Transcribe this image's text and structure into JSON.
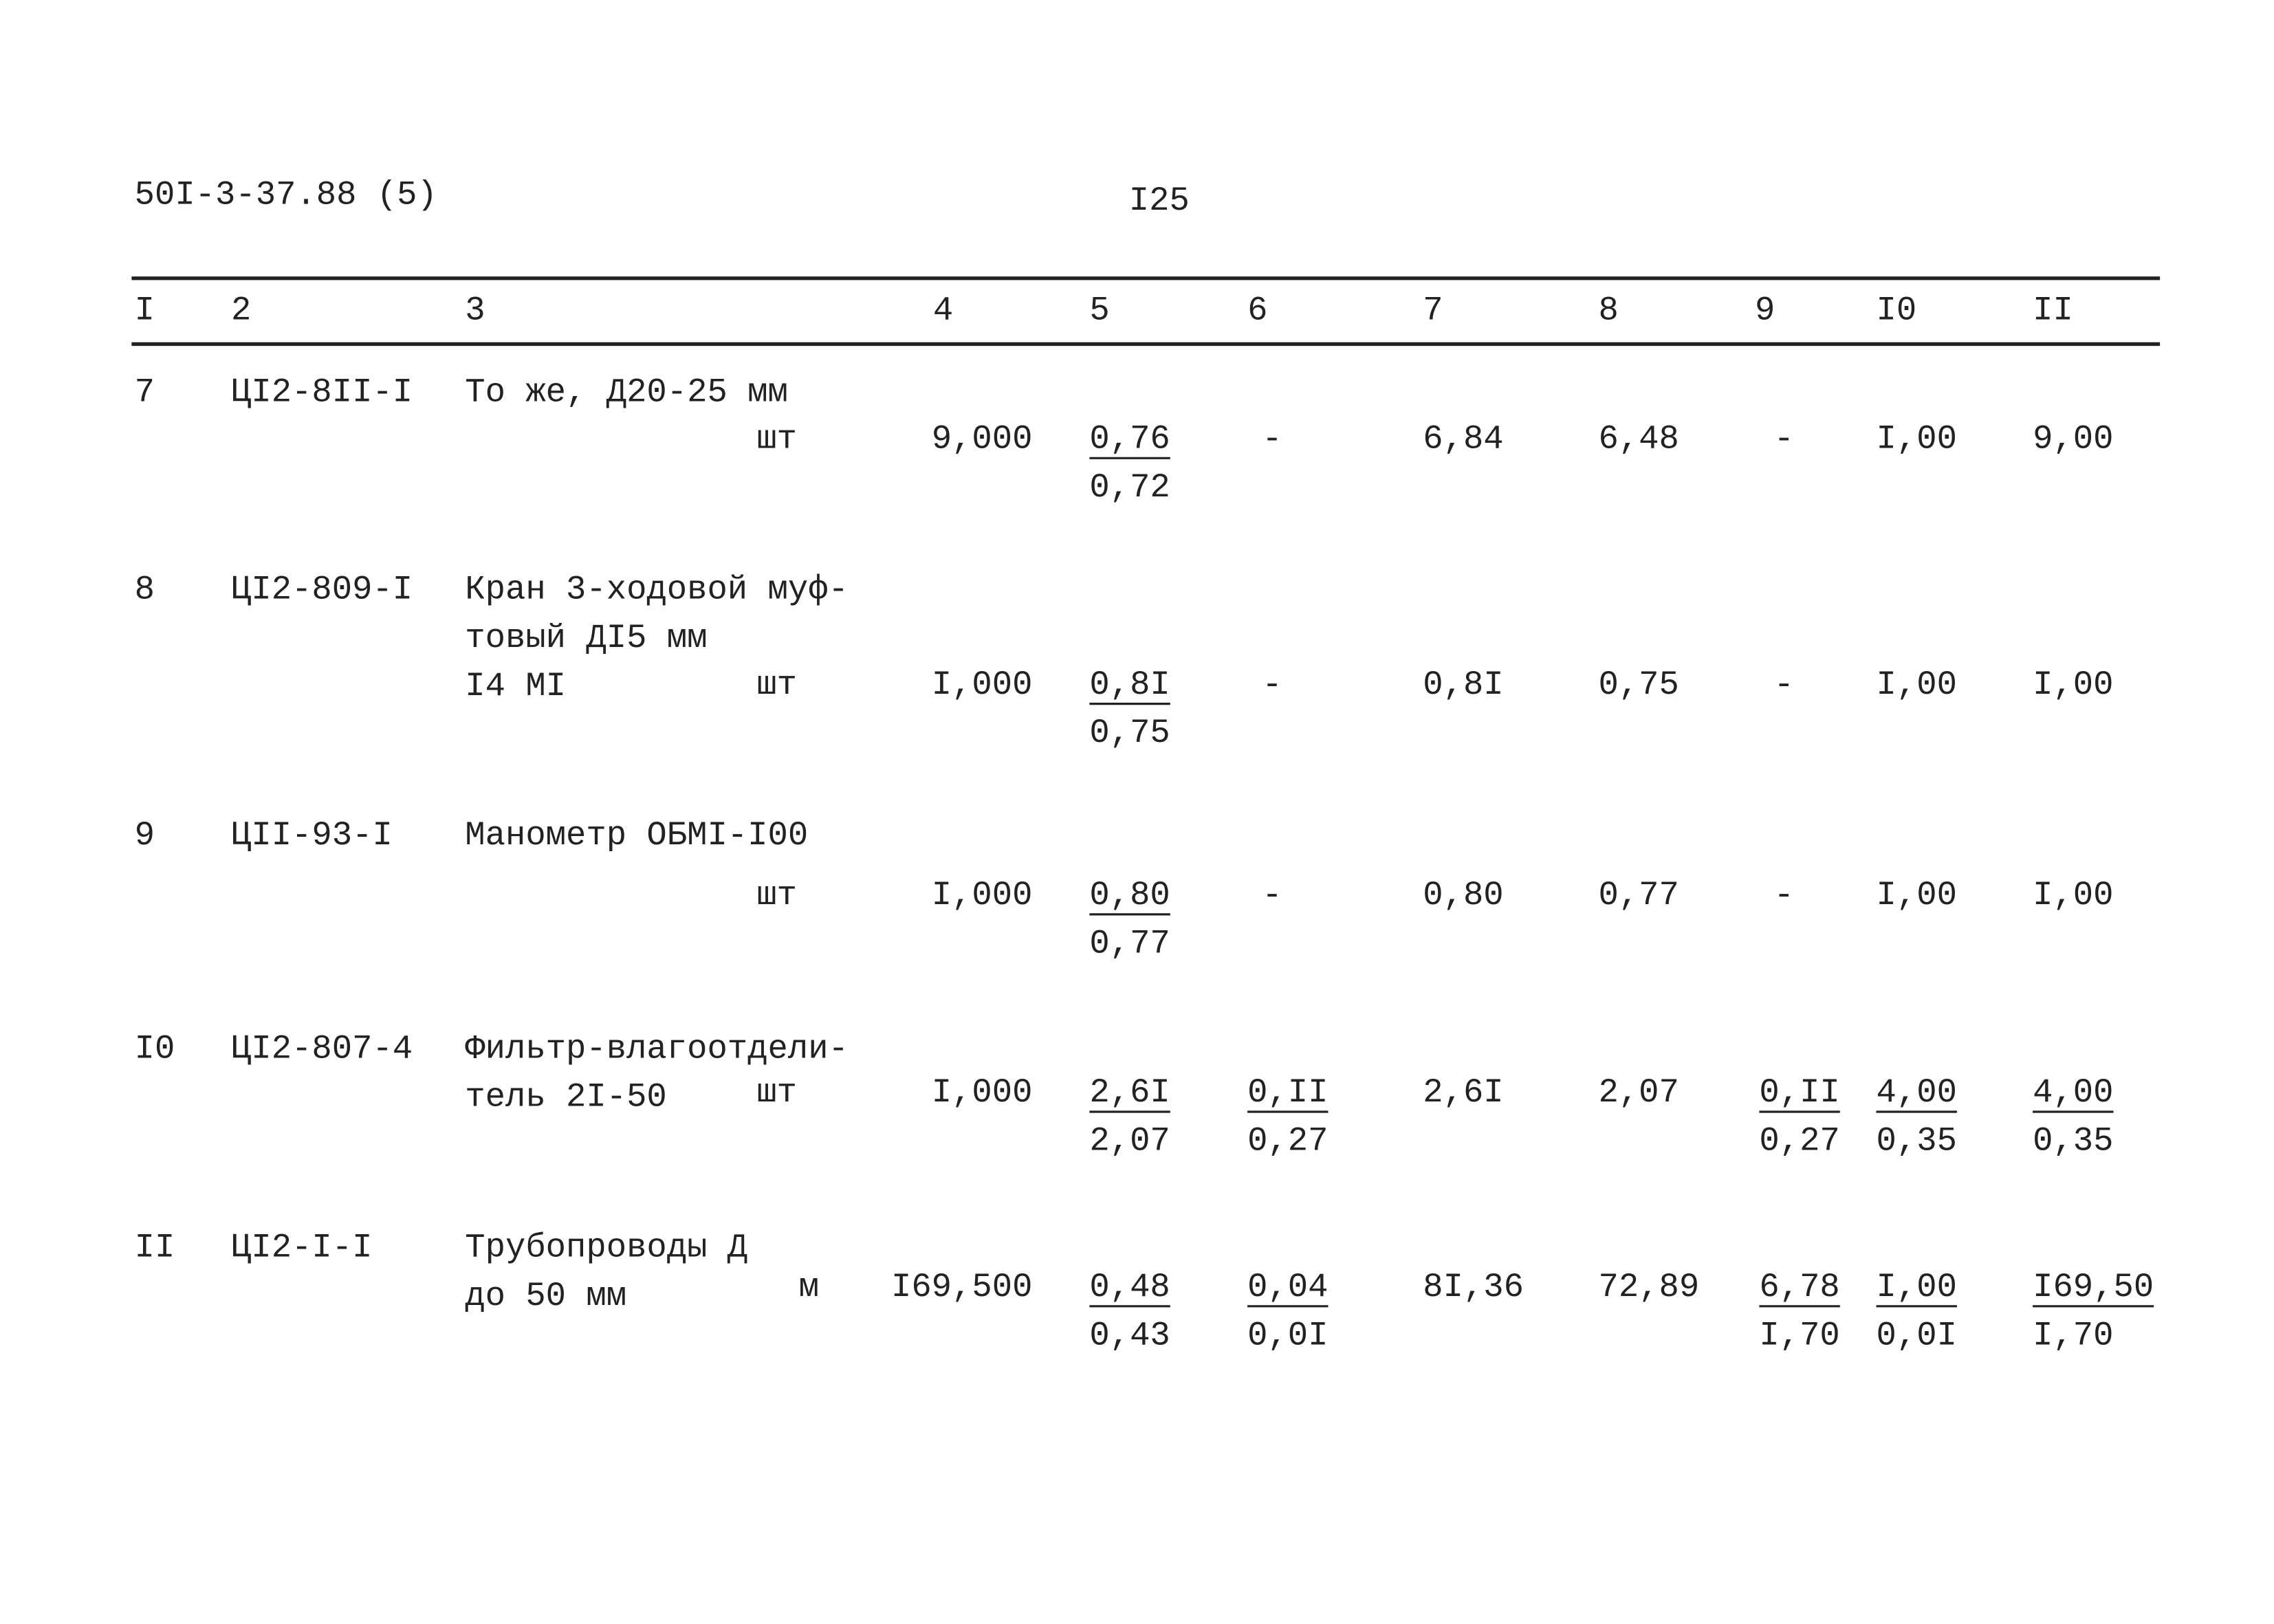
{
  "header": {
    "code": "50I-3-37.88  (5)",
    "page_number": "I25"
  },
  "table": {
    "columns": [
      "I",
      "2",
      "3",
      "4",
      "5",
      "6",
      "7",
      "8",
      "9",
      "I0",
      "II"
    ],
    "rows": [
      {
        "number": "7",
        "code": "ЦI2-8II-I",
        "name": [
          "То же, Д20-25 мм"
        ],
        "unit": "шт",
        "c4": "9,000",
        "c5": {
          "top": "0,76",
          "bottom": "0,72"
        },
        "c6": "-",
        "c7": "6,84",
        "c8": "6,48",
        "c9": "-",
        "c10": "I,00",
        "c11": "9,00"
      },
      {
        "number": "8",
        "code": "ЦI2-809-I",
        "name": [
          "Кран 3-ходовой муф-",
          "товый ДI5 мм",
          "I4 MI"
        ],
        "unit": "шт",
        "c4": "I,000",
        "c5": {
          "top": "0,8I",
          "bottom": "0,75"
        },
        "c6": "-",
        "c7": "0,8I",
        "c8": "0,75",
        "c9": "-",
        "c10": "I,00",
        "c11": "I,00"
      },
      {
        "number": "9",
        "code": "ЦII-93-I",
        "name": [
          "Манометр ОБМI-I00"
        ],
        "unit": "шт",
        "c4": "I,000",
        "c5": {
          "top": "0,80",
          "bottom": "0,77"
        },
        "c6": "-",
        "c7": "0,80",
        "c8": "0,77",
        "c9": "-",
        "c10": "I,00",
        "c11": "I,00"
      },
      {
        "number": "I0",
        "code": "ЦI2-807-4",
        "name": [
          "Фильтр-влагоотдели-",
          "тель 2I-50"
        ],
        "unit": "шт",
        "c4": "I,000",
        "c5": {
          "top": "2,6I",
          "bottom": "2,07"
        },
        "c6": {
          "top": "0,II",
          "bottom": "0,27"
        },
        "c7": "2,6I",
        "c8": "2,07",
        "c9": {
          "top": "0,II",
          "bottom": "0,27"
        },
        "c10": {
          "top": "4,00",
          "bottom": "0,35"
        },
        "c11": {
          "top": "4,00",
          "bottom": "0,35"
        }
      },
      {
        "number": "II",
        "code": "ЦI2-I-I",
        "name": [
          "Трубопроводы Д",
          "до 50 мм"
        ],
        "unit": "м",
        "c4": "I69,500",
        "c5": {
          "top": "0,48",
          "bottom": "0,43"
        },
        "c6": {
          "top": "0,04",
          "bottom": "0,0I"
        },
        "c7": "8I,36",
        "c8": "72,89",
        "c9": {
          "top": "6,78",
          "bottom": "I,70"
        },
        "c10": {
          "top": "I,00",
          "bottom": "0,0I"
        },
        "c11": {
          "top": "I69,50",
          "bottom": "I,70"
        }
      }
    ]
  }
}
